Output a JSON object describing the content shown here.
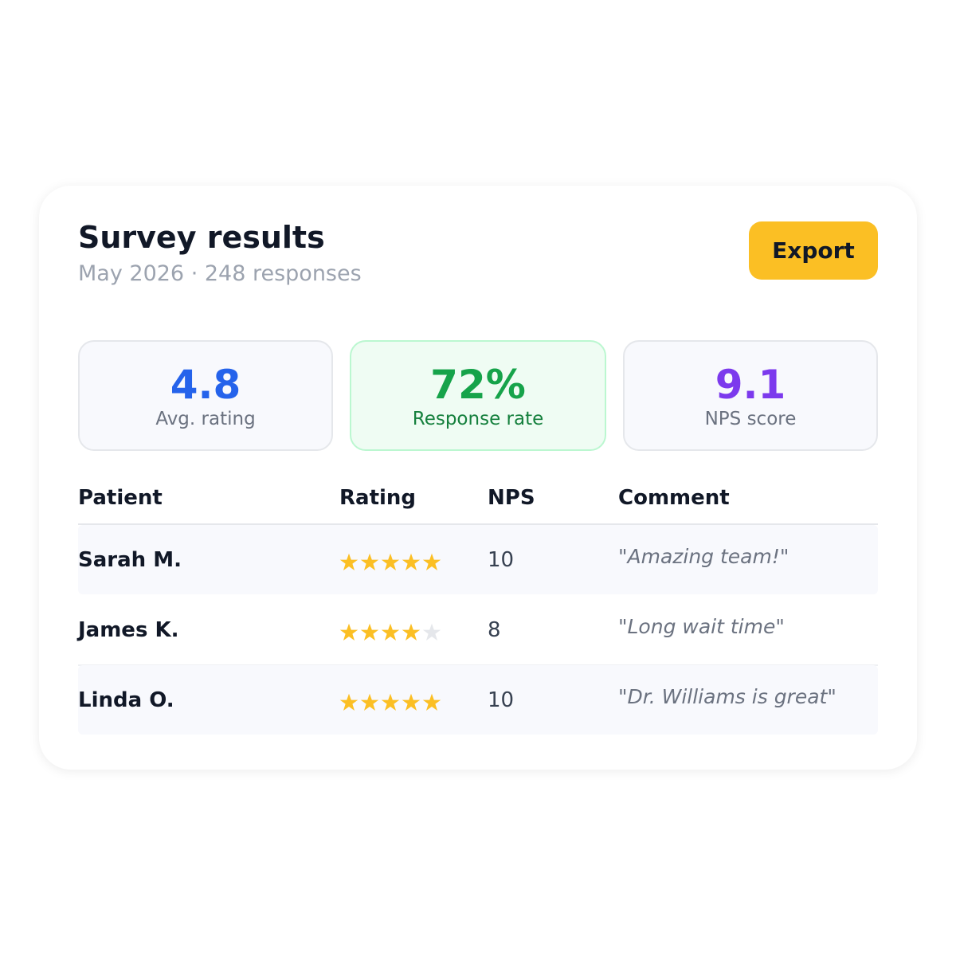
{
  "header": {
    "title": "Survey results",
    "subtitle": "May 2026 · 248 responses",
    "action": "Export"
  },
  "stats": [
    {
      "value": "4.8",
      "label": "Avg. rating"
    },
    {
      "value": "72%",
      "label": "Response rate"
    },
    {
      "value": "9.1",
      "label": "NPS score"
    }
  ],
  "table": {
    "columns": [
      "Patient",
      "Rating",
      "NPS",
      "Comment"
    ],
    "rows": [
      {
        "patient": "Sarah M.",
        "rating": 5,
        "nps": 10,
        "comment": "\"Amazing team!\""
      },
      {
        "patient": "James K.",
        "rating": 4,
        "nps": 8,
        "comment": "\"Long wait time\""
      },
      {
        "patient": "Linda O.",
        "rating": 5,
        "nps": 10,
        "comment": "\"Dr. Williams is great\""
      }
    ]
  }
}
